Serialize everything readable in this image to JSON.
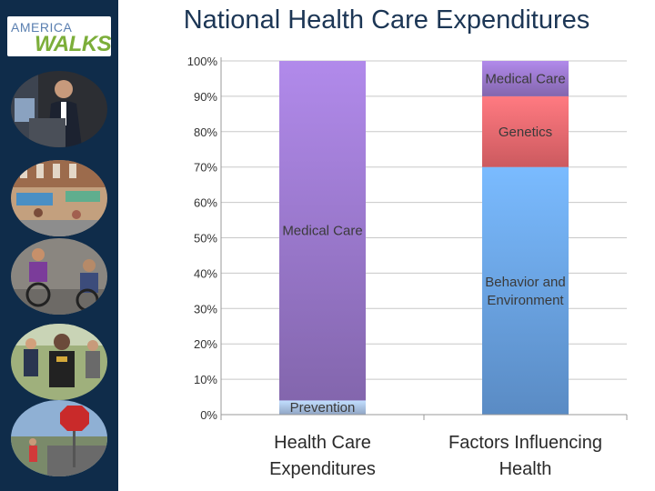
{
  "logo": {
    "line1": "AMERICA",
    "line2": "WALKS"
  },
  "sidebar": {
    "photos": [
      {
        "label": "speaker-at-podium"
      },
      {
        "label": "street-market"
      },
      {
        "label": "wheelchair-users"
      },
      {
        "label": "walkers-group"
      },
      {
        "label": "stop-sign-street"
      }
    ]
  },
  "page": {
    "title": "National Health Care Expenditures"
  },
  "colors": {
    "medical_care": "#9a78cc",
    "prevention": "#a9c2e6",
    "genetics": "#f06a70",
    "behavior": "#6aa3e6",
    "grid": "#c8c8c8"
  },
  "chart_data": {
    "type": "bar",
    "stacked": true,
    "percent": true,
    "categories": [
      [
        "Health Care",
        "Expenditures"
      ],
      [
        "Factors Influencing",
        "Health"
      ]
    ],
    "ylim": [
      0,
      100
    ],
    "yticks": [
      "0%",
      "10%",
      "20%",
      "30%",
      "40%",
      "50%",
      "60%",
      "70%",
      "80%",
      "90%",
      "100%"
    ],
    "grid": true,
    "legend": "none",
    "bars": [
      {
        "category_index": 0,
        "segments": [
          {
            "label": [
              "Prevention"
            ],
            "value": 4,
            "color_key": "prevention"
          },
          {
            "label": [
              "Medical Care"
            ],
            "value": 96,
            "color_key": "medical_care"
          }
        ]
      },
      {
        "category_index": 1,
        "segments": [
          {
            "label": [
              "Behavior and",
              "Environment"
            ],
            "value": 70,
            "color_key": "behavior"
          },
          {
            "label": [
              "Genetics"
            ],
            "value": 20,
            "color_key": "genetics"
          },
          {
            "label": [
              "Medical Care"
            ],
            "value": 10,
            "color_key": "medical_care"
          }
        ]
      }
    ]
  }
}
